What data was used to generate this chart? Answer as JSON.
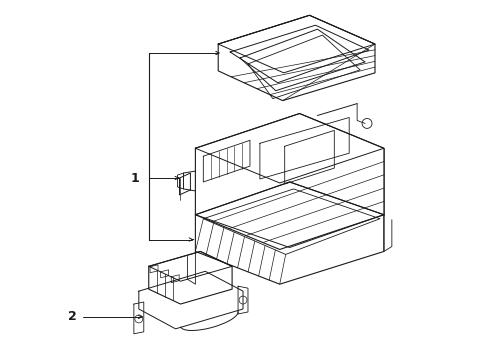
{
  "background_color": "#ffffff",
  "line_color": "#1a1a1a",
  "label_1": "1",
  "label_2": "2",
  "fig_width": 4.9,
  "fig_height": 3.6,
  "dpi": 100
}
